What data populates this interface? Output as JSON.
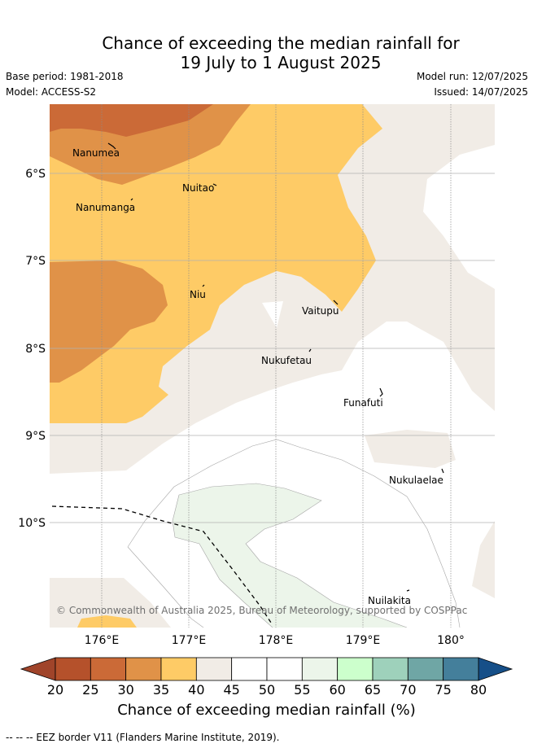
{
  "title_line1": "Chance of exceeding the median rainfall for",
  "title_line2": "19 July to 1 August 2025",
  "base_period": "Base period: 1981-2018",
  "model": "Model: ACCESS-S2",
  "model_run": "Model run: 12/07/2025",
  "issued": "Issued: 14/07/2025",
  "copyright": "© Commonwealth of Australia 2025, Bureau of Meteorology, supported by COSPPac",
  "lon_ticks": [
    "176°E",
    "177°E",
    "178°E",
    "179°E",
    "180°"
  ],
  "lat_ticks": [
    "6°S",
    "7°S",
    "8°S",
    "9°S",
    "10°S"
  ],
  "places": {
    "nanumea": "Nanumea",
    "nanumanga": "Nanumanga",
    "nuitao": "Nuitao",
    "niu": "Niu",
    "vaitupu": "Vaitupu",
    "nukufetau": "Nukufetau",
    "funafuti": "Funafuti",
    "nukulaelae": "Nukulaelae",
    "nuilakita": "Nuilakita"
  },
  "colorbar": {
    "ticks": [
      "20",
      "25",
      "30",
      "35",
      "40",
      "45",
      "50",
      "55",
      "60",
      "65",
      "70",
      "75",
      "80"
    ],
    "under_color": "#a0442a",
    "over_color": "#164f88",
    "colors": [
      "#b5512b",
      "#cb6a37",
      "#e09248",
      "#fecb66",
      "#f1ece6",
      "#ffffff",
      "#ffffff",
      "#ecf5ea",
      "#ccffcc",
      "#9ed1bb",
      "#6fa6a5",
      "#447f9b"
    ],
    "label": "Chance of exceeding median rainfall (%)"
  },
  "footer": "-- -- -- EEZ border V11 (Flanders Marine Institute, 2019)."
}
